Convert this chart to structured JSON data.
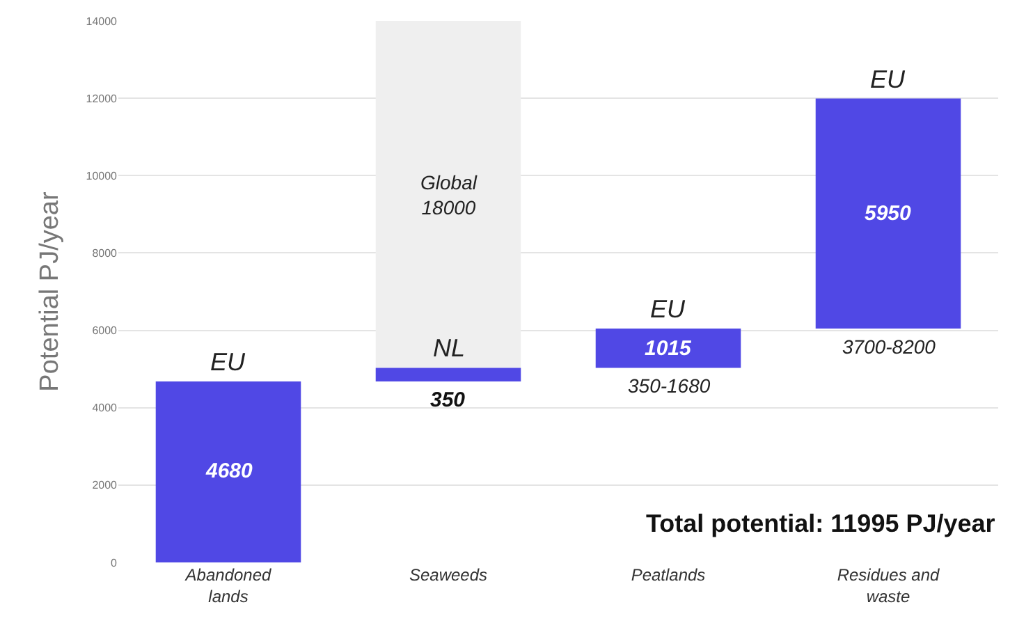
{
  "chart_data": {
    "type": "bar",
    "ylabel": "Potential PJ/year",
    "categories": [
      "Abandoned lands",
      "Seaweeds",
      "Peatlands",
      "Residues and waste"
    ],
    "series": [
      {
        "color": "#5048e5",
        "values": [
          4680,
          350,
          1015,
          5950
        ],
        "base": [
          0,
          4680,
          5030,
          6045
        ],
        "value_labels": [
          "4680",
          "350",
          "1015",
          "5950"
        ]
      },
      {
        "name": "Global 18000",
        "color": "#efefef",
        "values": [
          null,
          8970,
          null,
          null
        ],
        "base": [
          null,
          5030,
          null,
          null
        ]
      }
    ],
    "ylim": [
      0,
      14000
    ],
    "yticks": [
      0,
      2000,
      4000,
      6000,
      8000,
      10000,
      12000,
      14000
    ],
    "grid": "y",
    "legend": false,
    "annotations": [
      {
        "text": "EU",
        "x": "Abandoned lands",
        "y": 4680
      },
      {
        "text": "NL",
        "x": "Seaweeds",
        "y": 5030
      },
      {
        "text": "EU",
        "x": "Peatlands",
        "y": 6045
      },
      {
        "text": "350-1680",
        "x": "Peatlands",
        "y": 5030
      },
      {
        "text": "EU",
        "x": "Residues and waste",
        "y": 11995
      },
      {
        "text": "3700-8200",
        "x": "Residues and waste",
        "y": 6045
      },
      "Total potential: 11995 PJ/year"
    ]
  }
}
